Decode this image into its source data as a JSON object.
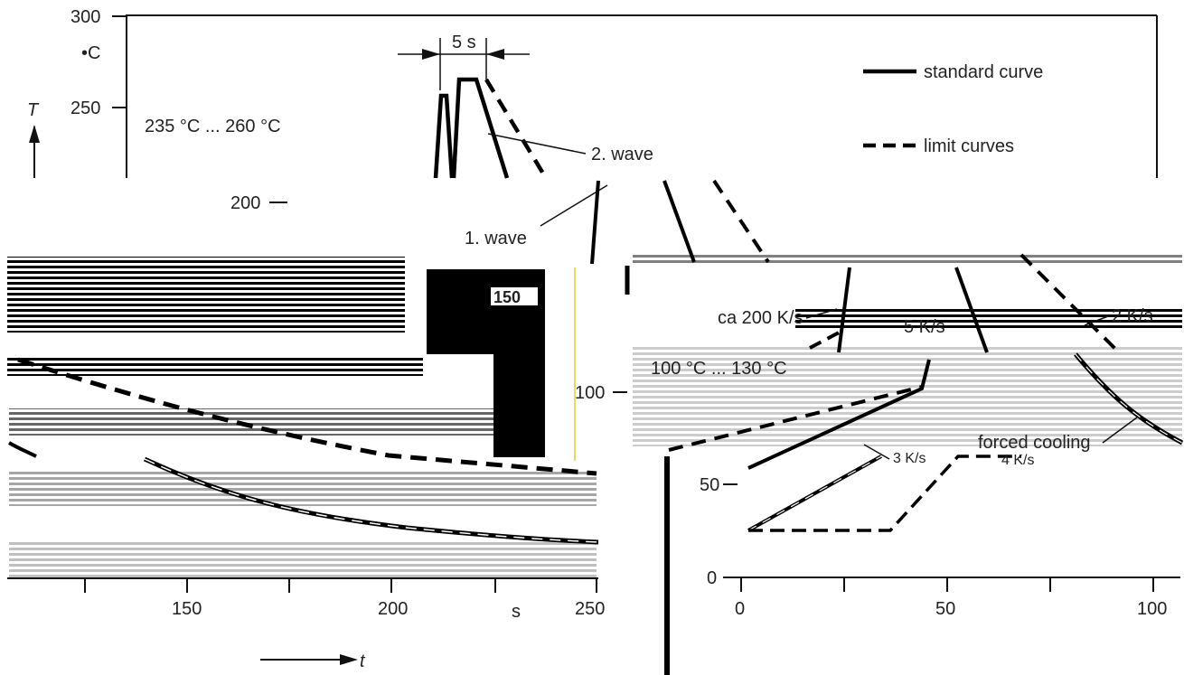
{
  "chart_data": {
    "type": "line",
    "title": "",
    "xlabel": "t",
    "x_unit": "s",
    "ylabel": "T",
    "y_unit": "°C",
    "upper_panel": {
      "ylim": [
        200,
        300
      ],
      "yticks": [
        "300",
        "250",
        "200"
      ],
      "series": [
        {
          "name": "standard curve",
          "style": "solid",
          "x": [
            0,
            2,
            4,
            5,
            10,
            14,
            21
          ],
          "y": [
            100,
            258,
            100,
            265,
            265,
            245,
            200
          ]
        },
        {
          "name": "limit curves",
          "style": "dashed",
          "x": [
            6,
            12.5
          ],
          "y": [
            265,
            205
          ]
        }
      ]
    },
    "lower_left_panel": {
      "xlim": [
        100,
        250
      ],
      "xticks": [
        "150",
        "200",
        "s",
        "250"
      ],
      "ytick": "150",
      "series": [
        {
          "style": "dashed",
          "x": [
            100,
            180,
            250
          ],
          "y": [
            125,
            100,
            85
          ]
        },
        {
          "style": "double",
          "x": [
            100,
            140,
            200,
            250
          ],
          "y": [
            95,
            80,
            60,
            40
          ]
        }
      ]
    },
    "lower_right_panel": {
      "xlim": [
        0,
        110
      ],
      "ylim": [
        0,
        150
      ],
      "xticks": [
        "0",
        "50",
        "100"
      ],
      "yticks": [
        "100",
        "50",
        "0"
      ],
      "series": [
        {
          "name": "standard curve",
          "style": "solid",
          "x": [
            2,
            18,
            45,
            56,
            60
          ],
          "y": [
            25,
            60,
            100,
            100,
            130
          ]
        },
        {
          "name": "limit curves",
          "style": "dashed",
          "x": [
            2,
            35,
            45,
            50,
            84,
            92
          ],
          "y": [
            25,
            25,
            45,
            60,
            98,
            115
          ]
        },
        {
          "name": "limit curves",
          "style": "dashed",
          "x": [
            -20,
            2,
            44
          ],
          "y": [
            35,
            60,
            100
          ]
        },
        {
          "name": "forced cooling",
          "style": "solid",
          "x": [
            82,
            100,
            110
          ],
          "y": [
            100,
            70,
            50
          ]
        }
      ]
    }
  },
  "labels": {
    "y_symbol": "T",
    "y_unit": "•C",
    "x_symbol": "t",
    "x_unit": "s",
    "legend_standard": "standard curve",
    "legend_limit": "limit curves",
    "time_span": "5 s",
    "peak_range": "235 °C ... 260 °C",
    "second_wave": "2. wave",
    "first_wave": "1. wave",
    "rate_200": "ca 200 K/s",
    "rate_5": "5 K/s",
    "rate_2": "2 K/s",
    "rate_3": "3 K/s",
    "rate_4": "4 K/s",
    "preheat_range": "100 °C ... 130 °C",
    "forced_cooling": "forced cooling"
  },
  "ticks": {
    "upper_y": [
      "300",
      "250",
      "200"
    ],
    "lower_left_x": [
      "150",
      "200",
      "s",
      "250"
    ],
    "lower_left_y": "150",
    "middle_y": "100",
    "right_y": [
      "50",
      "0"
    ],
    "right_x": [
      "0",
      "50",
      "100"
    ]
  },
  "colors": {
    "line": "#000000",
    "axis": "#111111",
    "text": "#222222",
    "background": "#ffffff"
  }
}
